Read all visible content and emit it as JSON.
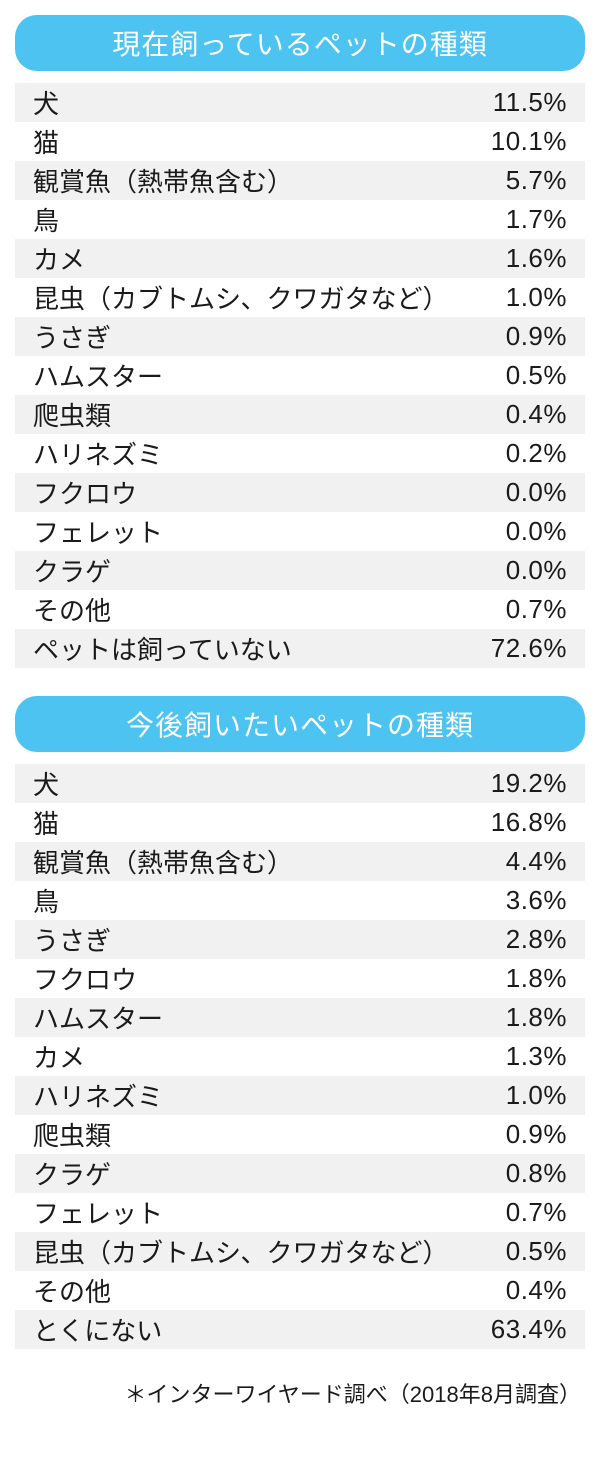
{
  "colors": {
    "title_bg": "#4cc3f0",
    "title_text": "#ffffff",
    "row_even_bg": "#f1f1f1",
    "row_odd_bg": "#ffffff",
    "text": "#1a1a1a",
    "page_bg": "#ffffff"
  },
  "typography": {
    "title_fontsize": 28,
    "row_fontsize": 26,
    "footer_fontsize": 22
  },
  "tables": [
    {
      "title": "現在飼っているペットの種類",
      "rows": [
        {
          "label": "犬",
          "value": "11.5%"
        },
        {
          "label": "猫",
          "value": "10.1%"
        },
        {
          "label": "観賞魚（熱帯魚含む）",
          "value": "5.7%"
        },
        {
          "label": "鳥",
          "value": "1.7%"
        },
        {
          "label": "カメ",
          "value": "1.6%"
        },
        {
          "label": "昆虫（カブトムシ、クワガタなど）",
          "value": "1.0%"
        },
        {
          "label": "うさぎ",
          "value": "0.9%"
        },
        {
          "label": "ハムスター",
          "value": "0.5%"
        },
        {
          "label": "爬虫類",
          "value": "0.4%"
        },
        {
          "label": "ハリネズミ",
          "value": "0.2%"
        },
        {
          "label": "フクロウ",
          "value": "0.0%"
        },
        {
          "label": "フェレット",
          "value": "0.0%"
        },
        {
          "label": "クラゲ",
          "value": "0.0%"
        },
        {
          "label": "その他",
          "value": "0.7%"
        },
        {
          "label": "ペットは飼っていない",
          "value": "72.6%"
        }
      ]
    },
    {
      "title": "今後飼いたいペットの種類",
      "rows": [
        {
          "label": "犬",
          "value": "19.2%"
        },
        {
          "label": "猫",
          "value": "16.8%"
        },
        {
          "label": "観賞魚（熱帯魚含む）",
          "value": "4.4%"
        },
        {
          "label": "鳥",
          "value": "3.6%"
        },
        {
          "label": "うさぎ",
          "value": "2.8%"
        },
        {
          "label": "フクロウ",
          "value": "1.8%"
        },
        {
          "label": "ハムスター",
          "value": "1.8%"
        },
        {
          "label": "カメ",
          "value": "1.3%"
        },
        {
          "label": "ハリネズミ",
          "value": "1.0%"
        },
        {
          "label": "爬虫類",
          "value": "0.9%"
        },
        {
          "label": "クラゲ",
          "value": "0.8%"
        },
        {
          "label": "フェレット",
          "value": "0.7%"
        },
        {
          "label": "昆虫（カブトムシ、クワガタなど）",
          "value": "0.5%"
        },
        {
          "label": "その他",
          "value": "0.4%"
        },
        {
          "label": "とくにない",
          "value": "63.4%"
        }
      ]
    }
  ],
  "footer": "＊インターワイヤード調べ（2018年8月調査）"
}
